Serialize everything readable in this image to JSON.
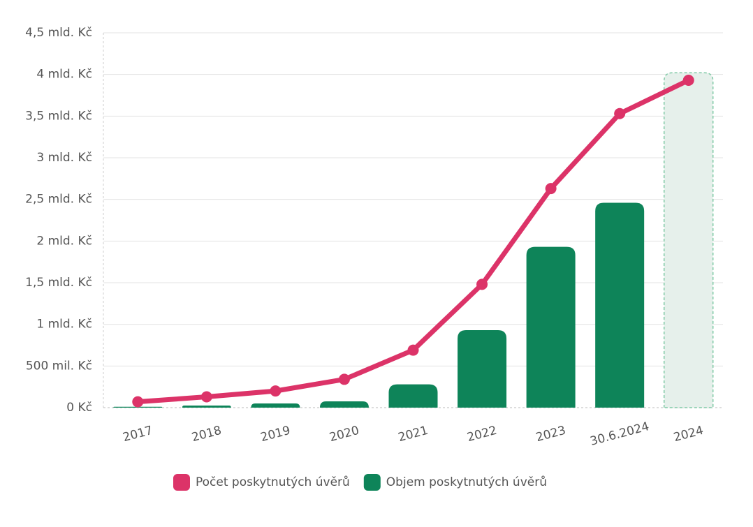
{
  "chart_data": {
    "type": "bar_line",
    "categories": [
      "2017",
      "2018",
      "2019",
      "2020",
      "2021",
      "2022",
      "2023",
      "30.6.2024",
      "2024"
    ],
    "series": [
      {
        "name": "Počet poskytnutých úvěrů",
        "type": "line",
        "color": "#dc3368",
        "values": [
          70000000,
          130000000,
          200000000,
          340000000,
          690000000,
          1480000000,
          2630000000,
          3530000000,
          3930000000
        ]
      },
      {
        "name": "Objem poskytnutých úvěrů",
        "type": "bar",
        "color": "#0e8459",
        "colors": [
          "#0e8459",
          "#0e8459",
          "#0e8459",
          "#0e8459",
          "#0e8459",
          "#0e8459",
          "#0e8459",
          "#0e8459",
          "#e6f0eb"
        ],
        "values": [
          10000000,
          25000000,
          50000000,
          75000000,
          280000000,
          930000000,
          1930000000,
          2460000000,
          4020000000
        ]
      }
    ],
    "ylim": [
      0,
      4500000000
    ],
    "yticks": [
      {
        "value": 0,
        "label": "0 Kč"
      },
      {
        "value": 500000000,
        "label": "500 mil. Kč"
      },
      {
        "value": 1000000000,
        "label": "1 mld. Kč"
      },
      {
        "value": 1500000000,
        "label": "1,5 mld. Kč"
      },
      {
        "value": 2000000000,
        "label": "2 mld. Kč"
      },
      {
        "value": 2500000000,
        "label": "2,5 mld. Kč"
      },
      {
        "value": 3000000000,
        "label": "3 mld. Kč"
      },
      {
        "value": 3500000000,
        "label": "3,5 mld. Kč"
      },
      {
        "value": 4000000000,
        "label": "4 mld. Kč"
      },
      {
        "value": 4500000000,
        "label": "4,5 mld. Kč"
      }
    ],
    "grid": true,
    "legend": "bottom"
  }
}
